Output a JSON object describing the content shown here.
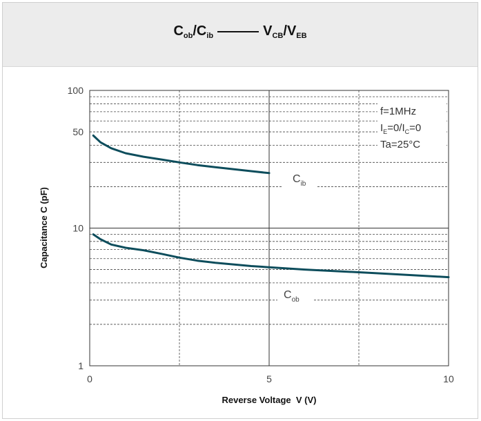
{
  "header": {
    "cob_main": "C",
    "cob_sub": "ob",
    "cib_main": "C",
    "cib_sub": "ib",
    "vcb_main": "V",
    "vcb_sub": "CB",
    "veb_main": "V",
    "veb_sub": "EB",
    "slash": "/"
  },
  "chart_data": {
    "type": "line",
    "xlabel": "Reverse Voltage  V (V)",
    "ylabel": "Capacitance C (pF)",
    "xlim": [
      0,
      10
    ],
    "ylim": [
      1,
      100
    ],
    "yscale": "log",
    "grid": true,
    "x_ticks": [
      "0",
      "5",
      "10"
    ],
    "y_ticks": [
      "1",
      "10",
      "50",
      "100"
    ],
    "conditions": {
      "freq": "f=1MHz",
      "bias_I": "I",
      "bias_E": "E",
      "bias_mid": "=0/I",
      "bias_C": "C",
      "bias_end": "=0",
      "temp": "Ta=25°C"
    },
    "series": [
      {
        "name": "Cib",
        "label_main": "C",
        "label_sub": "ib",
        "color": "#0d4d5c",
        "x": [
          0.1,
          0.3,
          0.6,
          1.0,
          1.5,
          2.0,
          2.5,
          3.0,
          3.5,
          4.0,
          4.5,
          5.0
        ],
        "y": [
          47,
          42,
          38,
          35,
          33,
          31.5,
          30,
          28.7,
          27.7,
          26.8,
          25.9,
          25.1
        ]
      },
      {
        "name": "Cob",
        "label_main": "C",
        "label_sub": "ob",
        "color": "#0d4d5c",
        "x": [
          0.1,
          0.3,
          0.6,
          1.0,
          1.5,
          2.0,
          2.5,
          3.0,
          3.5,
          4.0,
          4.5,
          5.0,
          6.0,
          7.0,
          8.0,
          9.0,
          10.0
        ],
        "y": [
          9.0,
          8.3,
          7.6,
          7.2,
          6.9,
          6.5,
          6.1,
          5.8,
          5.6,
          5.45,
          5.3,
          5.2,
          5.0,
          4.85,
          4.7,
          4.55,
          4.4
        ]
      }
    ]
  }
}
